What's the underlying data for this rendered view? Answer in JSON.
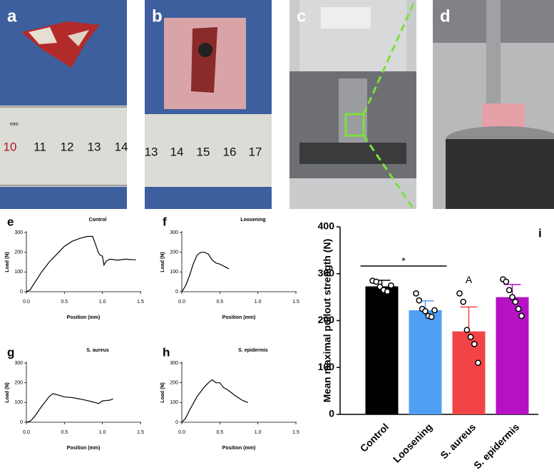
{
  "photos": [
    {
      "label": "a",
      "ruler_mark": "mm",
      "ruler_numbers": [
        "10",
        "11",
        "12",
        "13",
        "14"
      ]
    },
    {
      "label": "b",
      "ruler_numbers": [
        "13",
        "14",
        "15",
        "16",
        "17"
      ]
    },
    {
      "label": "c"
    },
    {
      "label": "d"
    }
  ],
  "chart_data": [
    {
      "type": "line",
      "panel": "e",
      "title": "Control",
      "x_label": "Position (mm)",
      "y_label": "Load (N)",
      "x": [
        0,
        0.05,
        0.1,
        0.2,
        0.3,
        0.4,
        0.5,
        0.6,
        0.7,
        0.8,
        0.87,
        0.9,
        0.95,
        0.97,
        1.0,
        1.02,
        1.05,
        1.1,
        1.2,
        1.3,
        1.4,
        1.44
      ],
      "values": [
        0,
        10,
        40,
        100,
        150,
        190,
        230,
        255,
        270,
        280,
        280,
        250,
        195,
        185,
        180,
        135,
        155,
        165,
        160,
        165,
        162,
        162
      ],
      "color": "#000000",
      "xlim": [
        0,
        1.5
      ],
      "ylim": [
        0,
        300
      ],
      "xticks": [
        {
          "value": 0,
          "label": "0.0"
        },
        0.5,
        {
          "value": 1,
          "label": "1.0"
        },
        1.5
      ],
      "yticks": [
        0,
        100,
        200,
        300
      ]
    },
    {
      "type": "line",
      "panel": "f",
      "title": "Loosening",
      "x_label": "Position (mm)",
      "y_label": "Load (N)",
      "x": [
        0,
        0.05,
        0.1,
        0.15,
        0.2,
        0.25,
        0.3,
        0.35,
        0.4,
        0.45,
        0.5,
        0.55,
        0.6,
        0.62
      ],
      "values": [
        0,
        30,
        80,
        140,
        185,
        200,
        200,
        190,
        160,
        145,
        140,
        130,
        120,
        115
      ],
      "color": "#000000",
      "xlim": [
        0,
        1.5
      ],
      "ylim": [
        0,
        300
      ],
      "xticks": [
        {
          "value": 0,
          "label": "0.0"
        },
        0.5,
        {
          "value": 1,
          "label": "1.0"
        },
        1.5
      ],
      "yticks": [
        0,
        100,
        200,
        300
      ]
    },
    {
      "type": "line",
      "panel": "g",
      "title": "S. aureus",
      "x_label": "Position (mm)",
      "y_label": "Load (N)",
      "x": [
        0,
        0.05,
        0.1,
        0.2,
        0.3,
        0.35,
        0.4,
        0.5,
        0.6,
        0.7,
        0.8,
        0.9,
        0.95,
        1.0,
        1.05,
        1.1,
        1.14
      ],
      "values": [
        0,
        5,
        25,
        80,
        130,
        145,
        140,
        128,
        125,
        118,
        110,
        100,
        95,
        108,
        110,
        112,
        118
      ],
      "color": "#000000",
      "xlim": [
        0,
        1.5
      ],
      "ylim": [
        0,
        300
      ],
      "xticks": [
        {
          "value": 0,
          "label": "0.0"
        },
        0.5,
        {
          "value": 1,
          "label": "1.0"
        },
        1.5
      ],
      "yticks": [
        0,
        100,
        200,
        300
      ]
    },
    {
      "type": "line",
      "panel": "h",
      "title": "S. epidermis",
      "x_label": "Position (mm)",
      "y_label": "Load (N)",
      "x": [
        0,
        0.05,
        0.1,
        0.2,
        0.3,
        0.35,
        0.4,
        0.45,
        0.5,
        0.55,
        0.6,
        0.7,
        0.8,
        0.87
      ],
      "values": [
        0,
        20,
        60,
        130,
        180,
        200,
        215,
        200,
        200,
        175,
        165,
        135,
        110,
        100
      ],
      "color": "#000000",
      "xlim": [
        0,
        1.5
      ],
      "ylim": [
        0,
        300
      ],
      "xticks": [
        {
          "value": 0,
          "label": "0.0"
        },
        0.5,
        {
          "value": 1,
          "label": "1.0"
        },
        1.5
      ],
      "yticks": [
        0,
        100,
        200,
        300
      ]
    },
    {
      "type": "bar",
      "panel": "i",
      "y_label": "Mean maximal pullout strength (N)",
      "categories": [
        "Control",
        "Loosening",
        "S. aureus",
        "S. epidermis"
      ],
      "values": [
        273,
        222,
        177,
        250
      ],
      "errors": [
        13,
        20,
        52,
        27
      ],
      "colors": [
        "#000000",
        "#4f9ff5",
        "#f24444",
        "#b512c4"
      ],
      "points": [
        [
          285,
          283,
          272,
          265,
          262,
          275
        ],
        [
          258,
          243,
          225,
          220,
          210,
          208,
          222
        ],
        [
          258,
          240,
          180,
          165,
          150,
          110
        ],
        [
          288,
          283,
          265,
          250,
          240,
          225,
          210
        ]
      ],
      "ylim": [
        0,
        400
      ],
      "yticks": [
        0,
        100,
        200,
        300,
        400
      ],
      "annotations": [
        {
          "text": "*",
          "from": 0,
          "to": 1
        },
        {
          "text": "A",
          "category": 2
        }
      ]
    }
  ]
}
